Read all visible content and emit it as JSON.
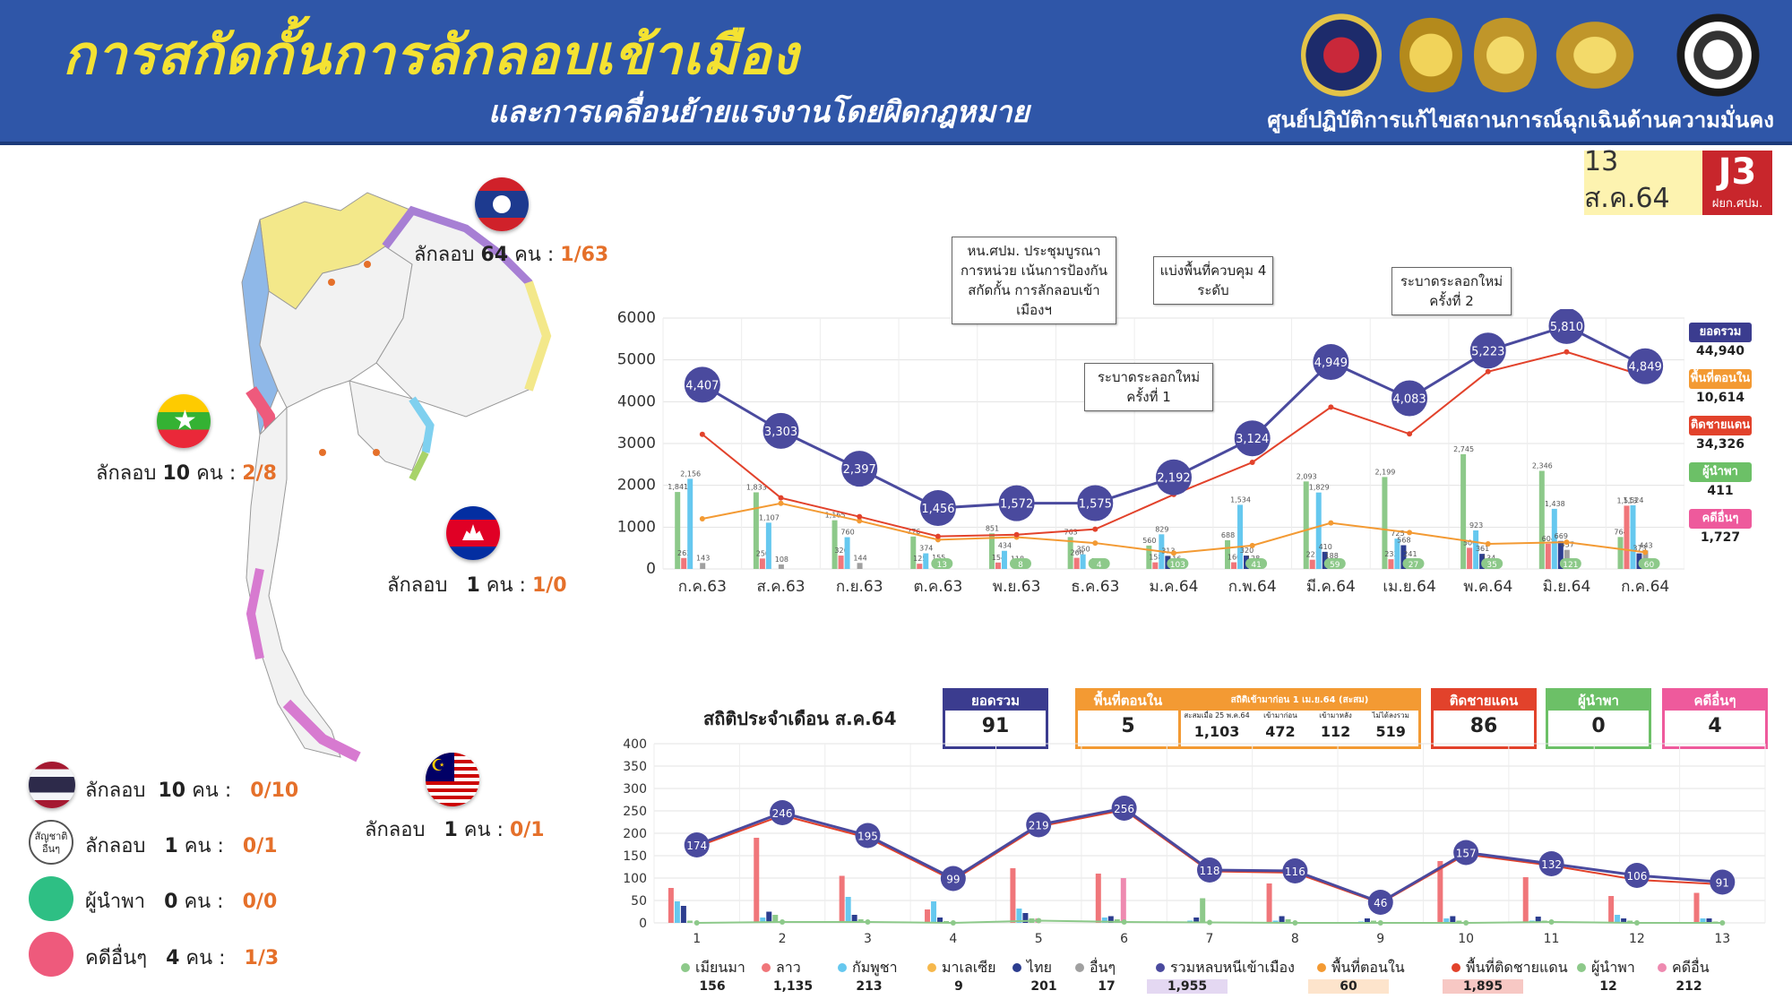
{
  "header": {
    "title": "การสกัดกั้นการลักลอบเข้าเมือง",
    "subtitle": "และการเคลื่อนย้ายแรงงานโดยผิดกฎหมาย",
    "org": "ศูนย์ปฏิบัติการแก้ไขสถานการณ์ฉุกเฉินด้านความมั่นคง",
    "date": "13 ส.ค.64",
    "badge": "J3",
    "badge_sub": "ฝยก.ศปม."
  },
  "map_labels": {
    "laos": {
      "word": "ลักลอบ",
      "count": "64",
      "unit": "คน :",
      "a": "1",
      "b": "63"
    },
    "myanmar": {
      "word": "ลักลอบ",
      "count": "10",
      "unit": "คน :",
      "a": "2",
      "b": "8"
    },
    "cambodia": {
      "word": "ลักลอบ",
      "count": "1",
      "unit": "คน :",
      "a": "1",
      "b": "0"
    },
    "malaysia": {
      "word": "ลักลอบ",
      "count": "1",
      "unit": "คน :",
      "a": "0",
      "b": "1"
    }
  },
  "left_legend": [
    {
      "word": "ลักลอบ",
      "count": "10",
      "unit": "คน :",
      "a": "0",
      "b": "10",
      "color": "#ffffff"
    },
    {
      "word": "ลักลอบ",
      "count": "1",
      "unit": "คน :",
      "a": "0",
      "b": "1",
      "color": "#ffffff",
      "icon_text": "สัญชาติอื่นๆ"
    },
    {
      "word": "ผู้นำพา",
      "count": "0",
      "unit": "คน :",
      "a": "0",
      "b": "0",
      "color": "#2ebf84"
    },
    {
      "word": "คดีอื่นๆ",
      "count": "4",
      "unit": "คน :",
      "a": "1",
      "b": "3",
      "color": "#ee5a7c"
    }
  ],
  "notes": {
    "n1": "หน.ศปม. ประชุมบูรณาการหน่วย เน้นการป้องกันสกัดกั้น การลักลอบเข้าเมืองฯ",
    "n2": "แบ่งพื้นที่ควบคุม 4 ระดับ",
    "n3": "ระบาดระลอกใหม่ ครั้งที่ 2",
    "n4": "ระบาดระลอกใหม่ ครั้งที่ 1"
  },
  "top_legend": [
    {
      "label": "ยอดรวม",
      "value": "44,940",
      "color": "#3b3c8f"
    },
    {
      "label": "พื้นที่ตอนใน",
      "value": "10,614",
      "color": "#f39a33"
    },
    {
      "label": "ติดชายแดน",
      "value": "34,326",
      "color": "#e2422b"
    },
    {
      "label": "ผู้นำพา",
      "value": "411",
      "color": "#6cc067"
    },
    {
      "label": "คดีอื่นๆ",
      "value": "1,727",
      "color": "#ee5a9c"
    }
  ],
  "stats": {
    "title": "สถิติประจำเดือน ส.ค.64",
    "total": {
      "label": "ยอดรวม",
      "value": "91"
    },
    "inland": {
      "label": "พื้นที่ตอนใน",
      "value": "5"
    },
    "inland_detail": {
      "label": "สถิติเข้ามาก่อน 1 เม.ย.64 (สะสม)",
      "cols": [
        "สะสมเมื่อ 25 พ.ค.64",
        "เข้ามาก่อน",
        "เข้ามาหลัง",
        "ไม่ได้ลงรวม"
      ],
      "values": [
        "1,103",
        "472",
        "112",
        "519"
      ]
    },
    "border": {
      "label": "ติดชายแดน",
      "value": "86"
    },
    "guides": {
      "label": "ผู้นำพา",
      "value": "0"
    },
    "other": {
      "label": "คดีอื่นๆ",
      "value": "4"
    }
  },
  "bottom_legend": [
    {
      "label": "เมียนมา",
      "value": "156",
      "color": "#8dc98a"
    },
    {
      "label": "ลาว",
      "value": "1,135",
      "color": "#f0767a"
    },
    {
      "label": "กัมพูชา",
      "value": "213",
      "color": "#66c8ef"
    },
    {
      "label": "มาเลเซีย",
      "value": "9",
      "color": "#f6b84c"
    },
    {
      "label": "ไทย",
      "value": "201",
      "color": "#2c3d8f"
    },
    {
      "label": "อื่นๆ",
      "value": "17",
      "color": "#a0a0a0"
    },
    {
      "label": "รวมหลบหนีเข้าเมือง",
      "value": "1,955",
      "color": "#4a4a9e"
    },
    {
      "label": "พื้นที่ตอนใน",
      "value": "60",
      "color": "#f39a33"
    },
    {
      "label": "พื้นที่ติดชายแดน",
      "value": "1,895",
      "color": "#e2422b"
    },
    {
      "label": "ผู้นำพา",
      "value": "12",
      "color": "#8dc98a"
    },
    {
      "label": "คดีอื่น",
      "value": "212",
      "color": "#ee8ab0"
    }
  ],
  "chart_data": [
    {
      "type": "line",
      "categories": [
        "ก.ค.63",
        "ส.ค.63",
        "ก.ย.63",
        "ต.ค.63",
        "พ.ย.63",
        "ธ.ค.63",
        "ม.ค.64",
        "ก.พ.64",
        "มี.ค.64",
        "เม.ย.64",
        "พ.ค.64",
        "มิ.ย.64",
        "ก.ค.64"
      ],
      "ylim": [
        0,
        6000
      ],
      "yticks": [
        0,
        1000,
        2000,
        3000,
        4000,
        5000,
        6000
      ],
      "series": [
        {
          "name": "ยอดรวม",
          "values": [
            4407,
            3303,
            2397,
            1456,
            1572,
            1575,
            2192,
            3124,
            4949,
            4083,
            5223,
            5810,
            4849
          ],
          "color": "#4a4a9e"
        },
        {
          "name": "ติดชายแดน",
          "values": [
            3220,
            1700,
            1250,
            780,
            820,
            950,
            1780,
            2550,
            3870,
            3230,
            4720,
            5190,
            4610
          ],
          "color": "#e2422b"
        },
        {
          "name": "พื้นที่ตอนใน",
          "values": [
            1200,
            1570,
            1150,
            700,
            760,
            620,
            380,
            560,
            1100,
            870,
            600,
            640,
            400
          ],
          "color": "#f39a33"
        }
      ],
      "bars": [
        {
          "name": "เมียนมา",
          "color": "#8dc98a",
          "values": [
            1841,
            1833,
            1165,
            776,
            851,
            763,
            560,
            688,
            2093,
            2199,
            2745,
            2346,
            764
          ]
        },
        {
          "name": "ลาว",
          "color": "#f0767a",
          "values": [
            262,
            250,
            320,
            125,
            154,
            266,
            158,
            160,
            221,
            233,
            506,
            604,
            1513
          ]
        },
        {
          "name": "กัมพูชา",
          "color": "#66c8ef",
          "values": [
            2156,
            1107,
            760,
            374,
            434,
            350,
            829,
            1534,
            1829,
            725,
            923,
            1438,
            1524
          ]
        },
        {
          "name": "ไทย",
          "color": "#2c3d8f",
          "values": [
            0,
            0,
            0,
            0,
            0,
            0,
            313,
            320,
            410,
            568,
            361,
            669,
            373
          ]
        },
        {
          "name": "อื่นๆ",
          "color": "#a0a0a0",
          "values": [
            143,
            108,
            144,
            155,
            118,
            59,
            116,
            128,
            188,
            241,
            134,
            457,
            443
          ]
        }
      ],
      "bar_labels_extra": {
        "ผู้นำพา": [
          0,
          0,
          0,
          13,
          8,
          4,
          103,
          41,
          59,
          27,
          35,
          121,
          60
        ]
      }
    },
    {
      "type": "line",
      "categories": [
        "1",
        "2",
        "3",
        "4",
        "5",
        "6",
        "7",
        "8",
        "9",
        "10",
        "11",
        "12",
        "13"
      ],
      "ylim": [
        0,
        400
      ],
      "yticks": [
        0,
        50,
        100,
        150,
        200,
        250,
        300,
        350,
        400
      ],
      "series": [
        {
          "name": "รวมหลบหนีเข้าเมือง",
          "values": [
            174,
            246,
            195,
            99,
            219,
            256,
            118,
            116,
            46,
            157,
            132,
            106,
            91
          ],
          "color": "#4a4a9e"
        },
        {
          "name": "พื้นที่ติดชายแดน",
          "values": [
            170,
            240,
            190,
            95,
            215,
            252,
            115,
            112,
            44,
            153,
            128,
            96,
            86
          ],
          "color": "#e2422b"
        },
        {
          "name": "ผู้นำพา",
          "values": [
            0,
            2,
            2,
            0,
            5,
            2,
            1,
            0,
            0,
            0,
            2,
            0,
            0
          ],
          "color": "#8dc98a"
        }
      ],
      "bars": [
        {
          "name": "ลาว",
          "color": "#f0767a",
          "values": [
            78,
            190,
            105,
            30,
            122,
            110,
            0,
            88,
            0,
            138,
            102,
            60,
            67
          ]
        },
        {
          "name": "กัมพูชา",
          "color": "#66c8ef",
          "values": [
            48,
            12,
            58,
            48,
            32,
            12,
            5,
            5,
            3,
            10,
            5,
            18,
            10
          ]
        },
        {
          "name": "ไทย",
          "color": "#2c3d8f",
          "values": [
            38,
            25,
            18,
            12,
            22,
            15,
            12,
            15,
            10,
            15,
            14,
            10,
            10
          ]
        },
        {
          "name": "เมียนมา",
          "color": "#8dc98a",
          "values": [
            5,
            18,
            8,
            4,
            10,
            8,
            55,
            8,
            5,
            5,
            5,
            5,
            3
          ]
        },
        {
          "name": "คดีอื่น",
          "color": "#ee8ab0",
          "values": [
            0,
            0,
            0,
            0,
            10,
            100,
            0,
            0,
            0,
            0,
            0,
            0,
            0
          ]
        }
      ]
    }
  ]
}
